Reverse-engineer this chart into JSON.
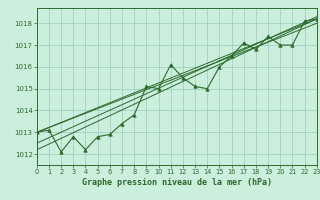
{
  "hours": [
    0,
    1,
    2,
    3,
    4,
    5,
    6,
    7,
    8,
    9,
    10,
    11,
    12,
    13,
    14,
    15,
    16,
    17,
    18,
    19,
    20,
    21,
    22,
    23
  ],
  "pressure": [
    1013.0,
    1013.1,
    1012.1,
    1012.8,
    1012.2,
    1012.8,
    1012.9,
    1013.4,
    1013.8,
    1015.1,
    1015.0,
    1016.1,
    1015.5,
    1015.1,
    1015.0,
    1016.0,
    1016.5,
    1017.1,
    1016.8,
    1017.4,
    1017.0,
    1017.0,
    1018.1,
    1018.2
  ],
  "trend_lines": [
    {
      "x": [
        0,
        23
      ],
      "y": [
        1012.5,
        1018.3
      ]
    },
    {
      "x": [
        0,
        23
      ],
      "y": [
        1013.0,
        1018.2
      ]
    },
    {
      "x": [
        0,
        23
      ],
      "y": [
        1013.0,
        1018.0
      ]
    },
    {
      "x": [
        0,
        23
      ],
      "y": [
        1012.2,
        1018.2
      ]
    }
  ],
  "line_color": "#2d6a2d",
  "bg_color": "#cceedd",
  "grid_color": "#99ccbb",
  "xlabel": "Graphe pression niveau de la mer (hPa)",
  "ylim": [
    1011.5,
    1018.7
  ],
  "xlim": [
    0,
    23
  ],
  "yticks": [
    1012,
    1013,
    1014,
    1015,
    1016,
    1017,
    1018
  ],
  "xticks": [
    0,
    1,
    2,
    3,
    4,
    5,
    6,
    7,
    8,
    9,
    10,
    11,
    12,
    13,
    14,
    15,
    16,
    17,
    18,
    19,
    20,
    21,
    22,
    23
  ]
}
